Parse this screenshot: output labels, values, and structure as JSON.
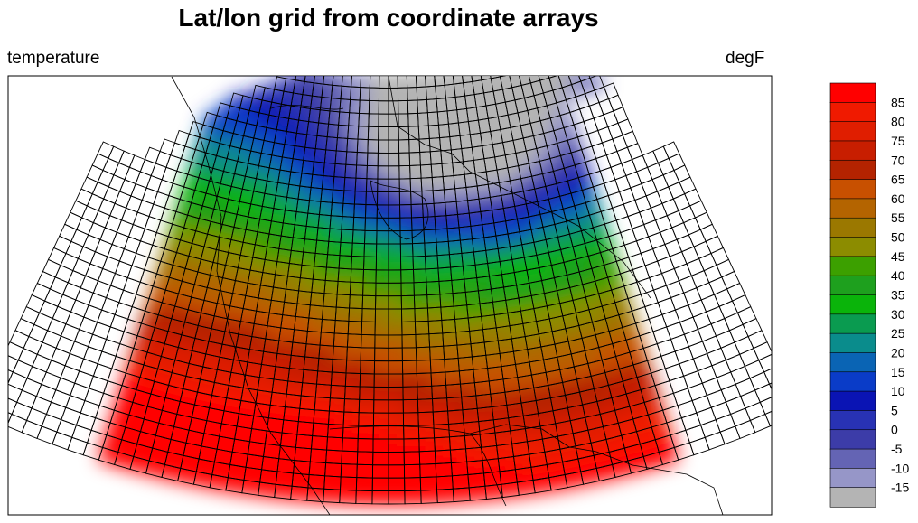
{
  "title": "Lat/lon grid from coordinate arrays",
  "left_string": "temperature",
  "right_string": "degF",
  "colorbar": {
    "labels": [
      "85",
      "80",
      "75",
      "70",
      "65",
      "60",
      "55",
      "50",
      "45",
      "40",
      "35",
      "30",
      "25",
      "20",
      "15",
      "10",
      "5",
      "0",
      "-5",
      "-10",
      "-15"
    ],
    "colors": [
      "#ff0000",
      "#f01a00",
      "#e01e00",
      "#c81e00",
      "#b42300",
      "#c85000",
      "#b46400",
      "#9b7800",
      "#8c8c00",
      "#3ca000",
      "#1ea01e",
      "#0ab40a",
      "#0a9b50",
      "#0a8c8c",
      "#0a64b4",
      "#0a3cc8",
      "#0a14b4",
      "#2832b4",
      "#3c3ca8",
      "#6464b4",
      "#9696c8",
      "#b4b4b4"
    ]
  },
  "chart_data": {
    "type": "map",
    "projection": "conic",
    "variable": "temperature",
    "units": "degF",
    "levels": [
      -15,
      -10,
      -5,
      0,
      5,
      10,
      15,
      20,
      25,
      30,
      35,
      40,
      45,
      50,
      55,
      60,
      65,
      70,
      75,
      80,
      85
    ]
  }
}
